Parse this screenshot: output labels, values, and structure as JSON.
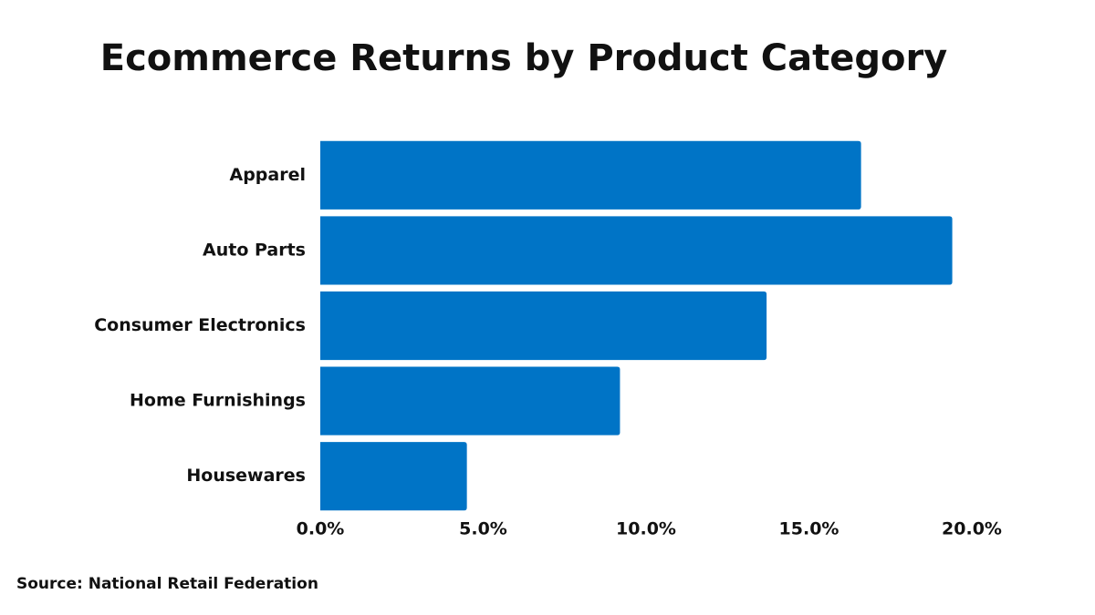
{
  "chart_data": {
    "type": "bar",
    "orientation": "horizontal",
    "title": "Ecommerce Returns by Product Category",
    "categories": [
      "Apparel",
      "Auto Parts",
      "Consumer Electronics",
      "Home Furnishings",
      "Housewares"
    ],
    "values": [
      16.6,
      19.4,
      13.7,
      9.2,
      4.5
    ],
    "color": "#0074c6",
    "xlim": [
      0,
      20
    ],
    "xticks": [
      {
        "value": 0,
        "label": "0.0%"
      },
      {
        "value": 5,
        "label": "5.0%"
      },
      {
        "value": 10,
        "label": "10.0%"
      },
      {
        "value": 15,
        "label": "15.0%"
      },
      {
        "value": 20,
        "label": "20.0%"
      }
    ],
    "grid": false,
    "source": "Source: National Retail Federation"
  }
}
